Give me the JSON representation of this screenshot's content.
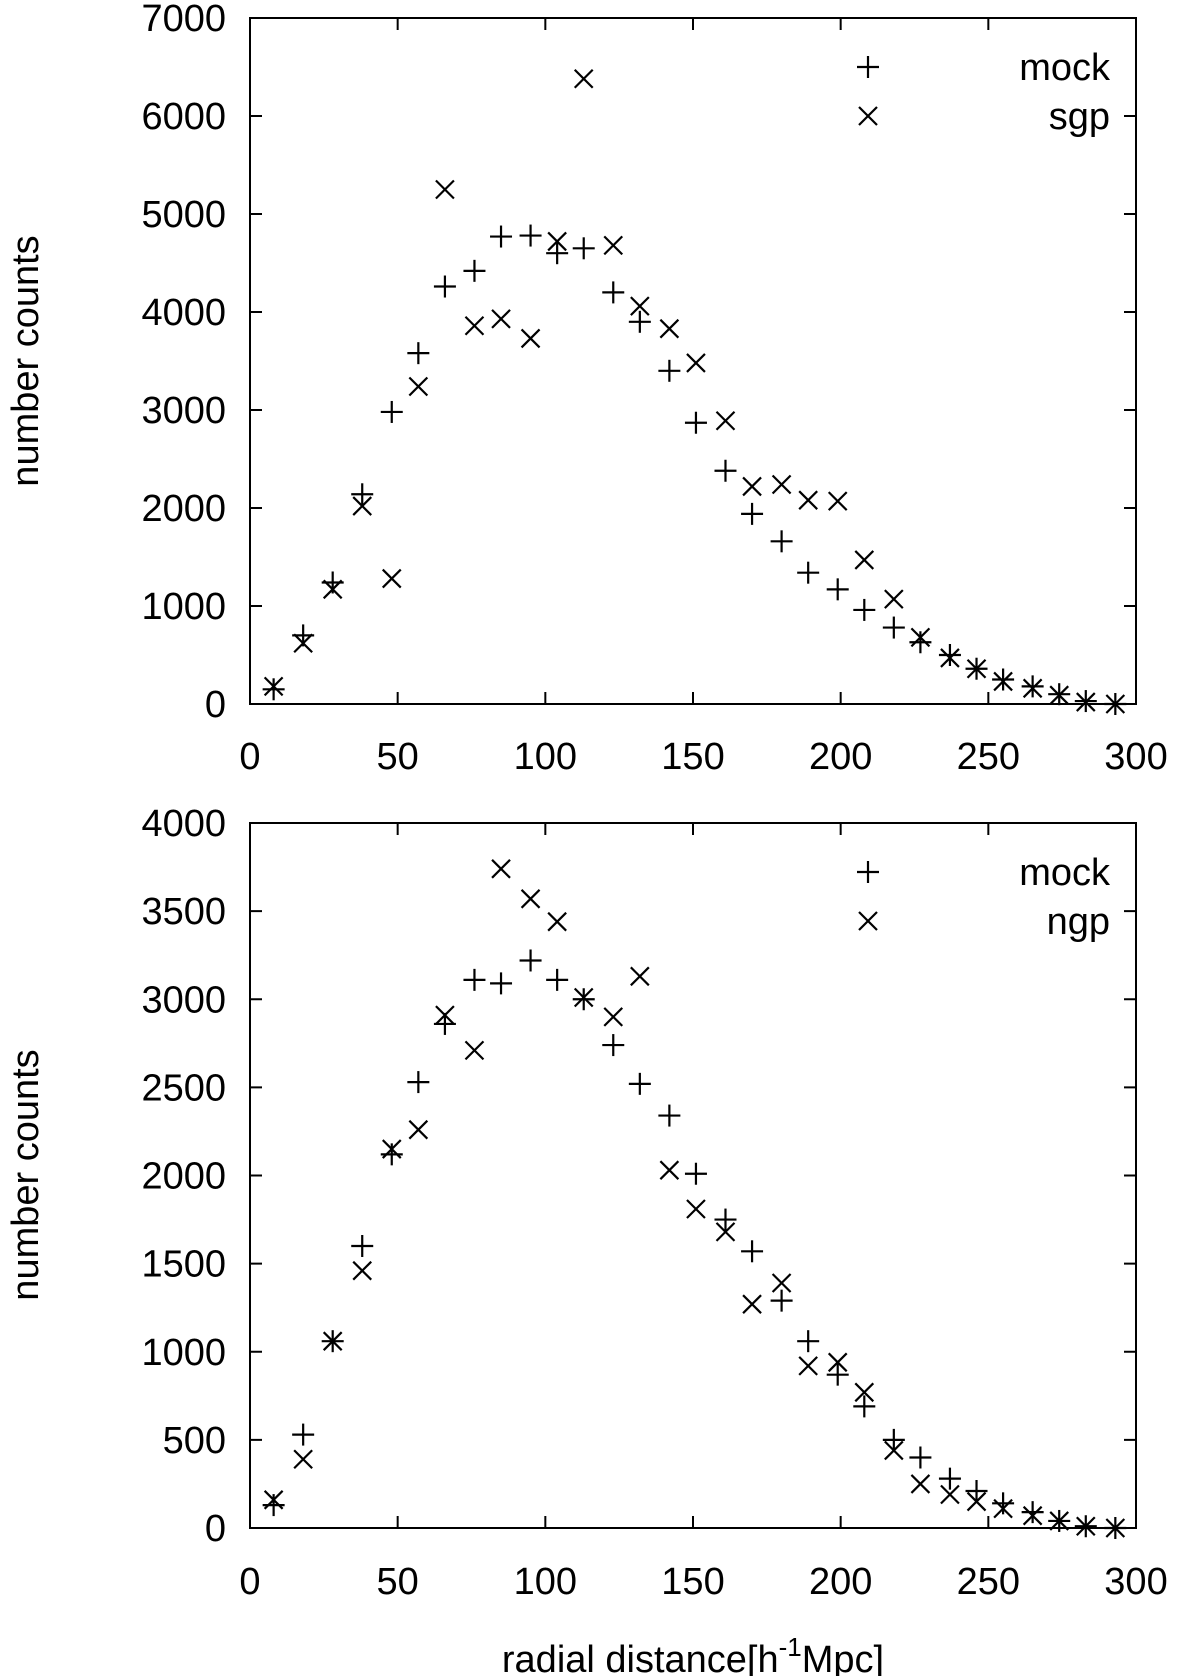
{
  "chart_data": [
    {
      "type": "scatter",
      "xlabel": "",
      "ylabel": "number counts",
      "xlim": [
        0,
        300
      ],
      "ylim": [
        0,
        7000
      ],
      "xticks": [
        "0",
        "50",
        "100",
        "150",
        "200",
        "250",
        "300"
      ],
      "yticks": [
        "0",
        "1000",
        "2000",
        "3000",
        "4000",
        "5000",
        "6000",
        "7000"
      ],
      "legend_position": "top-right",
      "series": [
        {
          "name": "mock",
          "marker": "plus",
          "x": [
            8,
            18,
            28,
            38,
            48,
            57,
            66,
            76,
            85,
            95,
            104,
            113,
            123,
            132,
            142,
            151,
            161,
            170,
            180,
            189,
            199,
            208,
            218,
            227,
            237,
            246,
            255,
            265,
            274,
            283,
            293
          ],
          "y": [
            150,
            700,
            1240,
            2140,
            2980,
            3580,
            4260,
            4420,
            4770,
            4780,
            4600,
            4650,
            4200,
            3900,
            3400,
            2870,
            2380,
            1940,
            1660,
            1340,
            1170,
            960,
            780,
            630,
            500,
            360,
            250,
            180,
            100,
            30,
            0
          ]
        },
        {
          "name": "sgp",
          "marker": "cross",
          "x": [
            8,
            18,
            28,
            38,
            48,
            57,
            66,
            76,
            85,
            95,
            104,
            113,
            123,
            132,
            142,
            151,
            161,
            170,
            180,
            189,
            199,
            208,
            218,
            227,
            237,
            246,
            255,
            265,
            274,
            283,
            293
          ],
          "y": [
            180,
            620,
            1170,
            2020,
            1280,
            3240,
            5250,
            3860,
            3930,
            3730,
            4720,
            6380,
            4680,
            4060,
            3830,
            3480,
            2890,
            2220,
            2240,
            2080,
            2070,
            1470,
            1070,
            680,
            470,
            360,
            230,
            160,
            90,
            20,
            0
          ]
        }
      ]
    },
    {
      "type": "scatter",
      "xlabel": "radial distance[h",
      "xlabel_sup": "-1",
      "xlabel_tail": "Mpc]",
      "ylabel": "number counts",
      "xlim": [
        0,
        300
      ],
      "ylim": [
        0,
        4000
      ],
      "xticks": [
        "0",
        "50",
        "100",
        "150",
        "200",
        "250",
        "300"
      ],
      "yticks": [
        "0",
        "500",
        "1000",
        "1500",
        "2000",
        "2500",
        "3000",
        "3500",
        "4000"
      ],
      "legend_position": "top-right",
      "series": [
        {
          "name": "mock",
          "marker": "plus",
          "x": [
            8,
            18,
            28,
            38,
            48,
            57,
            66,
            76,
            85,
            95,
            104,
            113,
            123,
            132,
            142,
            151,
            161,
            170,
            180,
            189,
            199,
            208,
            218,
            227,
            237,
            246,
            255,
            265,
            274,
            283,
            293
          ],
          "y": [
            130,
            530,
            1060,
            1600,
            2120,
            2530,
            2860,
            3110,
            3090,
            3220,
            3110,
            3000,
            2740,
            2520,
            2340,
            2010,
            1750,
            1570,
            1290,
            1060,
            870,
            690,
            500,
            400,
            280,
            210,
            140,
            90,
            40,
            10,
            0
          ]
        },
        {
          "name": "ngp",
          "marker": "cross",
          "x": [
            8,
            18,
            28,
            38,
            48,
            57,
            66,
            76,
            85,
            95,
            104,
            113,
            123,
            132,
            142,
            151,
            161,
            170,
            180,
            189,
            199,
            208,
            218,
            227,
            237,
            246,
            255,
            265,
            274,
            283,
            293
          ],
          "y": [
            160,
            390,
            1060,
            1460,
            2150,
            2260,
            2910,
            2710,
            3740,
            3570,
            3440,
            3010,
            2900,
            3130,
            2030,
            1810,
            1680,
            1270,
            1390,
            920,
            940,
            770,
            440,
            250,
            190,
            150,
            110,
            70,
            40,
            10,
            0
          ]
        }
      ]
    }
  ]
}
